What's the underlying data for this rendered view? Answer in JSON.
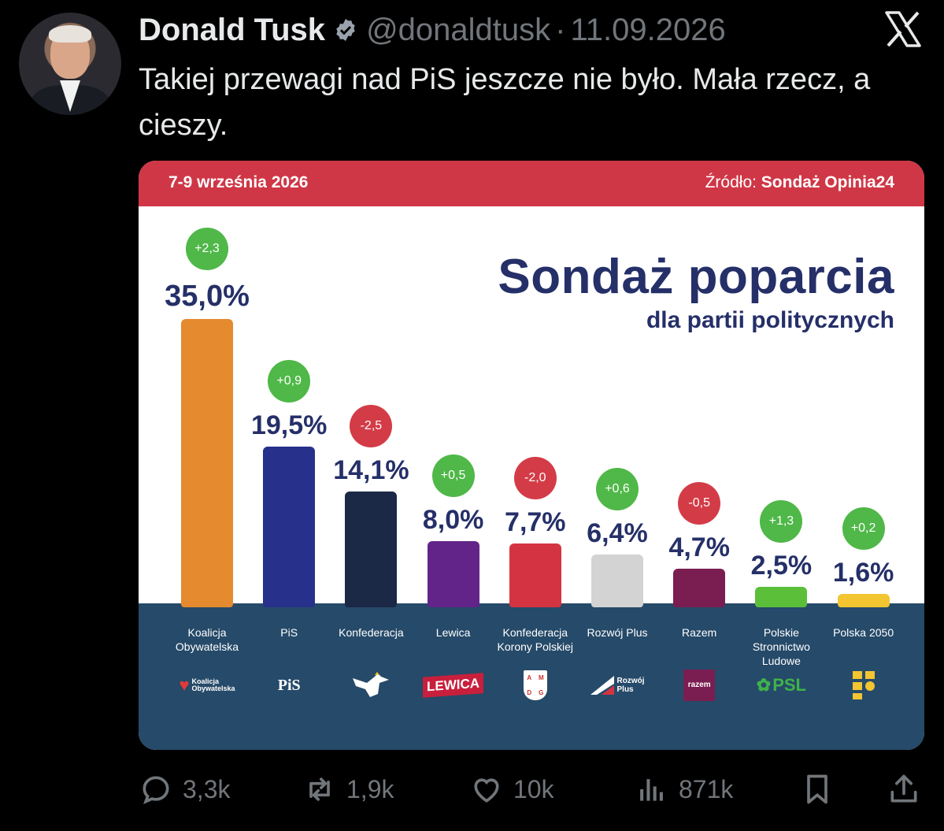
{
  "tweet": {
    "author_name": "Donald Tusk",
    "handle": "@donaldtusk",
    "separator": "·",
    "date": "11.09.2026",
    "text": "Takiej przewagi nad PiS jeszcze nie było. Mała rzecz, a cieszy.",
    "icons": [
      "avatar",
      "verified-badge-icon",
      "x-logo-icon"
    ]
  },
  "infographic": {
    "date_range": "7-9 września 2026",
    "source_label": "Źródło:",
    "source_name": "Sondaż Opinia24",
    "title": "Sondaż poparcia",
    "subtitle": "dla partii politycznych"
  },
  "chart_data": {
    "type": "bar",
    "title": "Sondaż poparcia",
    "subtitle": "dla partii politycznych",
    "categories": [
      "Koalicja Obywatelska",
      "PiS",
      "Konfederacja",
      "Lewica",
      "Konfederacja Korony Polskiej",
      "Rozwój Plus",
      "Razem",
      "Polskie Stronnictwo Ludowe",
      "Polska 2050"
    ],
    "values": [
      35.0,
      19.5,
      14.1,
      8.0,
      7.7,
      6.4,
      4.7,
      2.5,
      1.6
    ],
    "value_labels": [
      "35,0%",
      "19,5%",
      "14,1%",
      "8,0%",
      "7,7%",
      "6,4%",
      "4,7%",
      "2,5%",
      "1,6%"
    ],
    "change_labels": [
      "+2,3",
      "+0,9",
      "-2,5",
      "+0,5",
      "-2,0",
      "+0,6",
      "-0,5",
      "+1,3",
      "+0,2"
    ],
    "changes": [
      2.3,
      0.9,
      -2.5,
      0.5,
      -2.0,
      0.6,
      -0.5,
      1.3,
      0.2
    ],
    "label_lines": [
      [
        "Koalicja",
        "Obywatelska"
      ],
      [
        "PiS"
      ],
      [
        "Konfederacja"
      ],
      [
        "Lewica"
      ],
      [
        "Konfederacja",
        "Korony Polskiej"
      ],
      [
        "Rozwój Plus"
      ],
      [
        "Razem"
      ],
      [
        "Polskie",
        "Stronnictwo",
        "Ludowe"
      ],
      [
        "Polska 2050"
      ]
    ],
    "bar_colors": [
      "#e58a2e",
      "#27308a",
      "#1b2946",
      "#63248a",
      "#d43442",
      "#d3d3d3",
      "#7a1e52",
      "#5bbf3a",
      "#f2c531"
    ],
    "positive_color": "#4fb848",
    "negative_color": "#d33c47",
    "ylim": [
      0,
      35
    ],
    "grid": false
  },
  "party_logos": [
    {
      "name": "koalicja-obywatelska-logo",
      "text_lines": [
        "Koalicja",
        "Obywatelska"
      ],
      "color": "#e23a3a"
    },
    {
      "name": "pis-logo",
      "text_lines": [
        "PiS"
      ],
      "color": "#ffffff"
    },
    {
      "name": "konfederacja-logo",
      "text_lines": [],
      "color": "#ffffff"
    },
    {
      "name": "lewica-logo",
      "text_lines": [
        "LEWICA"
      ],
      "color": "#c81f3c"
    },
    {
      "name": "konfederacja-korony-polskiej-logo",
      "text_lines": [
        "A",
        "M",
        "D",
        "G"
      ],
      "color": "#c9302c"
    },
    {
      "name": "rozwoj-plus-logo",
      "text_lines": [
        "Rozwój",
        "Plus"
      ],
      "color": "#ffffff"
    },
    {
      "name": "razem-logo",
      "text_lines": [
        "razem"
      ],
      "color": "#7a1e52"
    },
    {
      "name": "psl-logo",
      "text_lines": [
        "PSL"
      ],
      "color": "#3fb24a"
    },
    {
      "name": "polska-2050-logo",
      "text_lines": [],
      "color": "#f2c531"
    }
  ],
  "actions": {
    "replies": "3,3k",
    "reposts": "1,9k",
    "likes": "10k",
    "views": "871k",
    "icons": [
      "reply-icon",
      "repost-icon",
      "like-icon",
      "views-icon",
      "bookmark-icon",
      "share-icon"
    ]
  }
}
